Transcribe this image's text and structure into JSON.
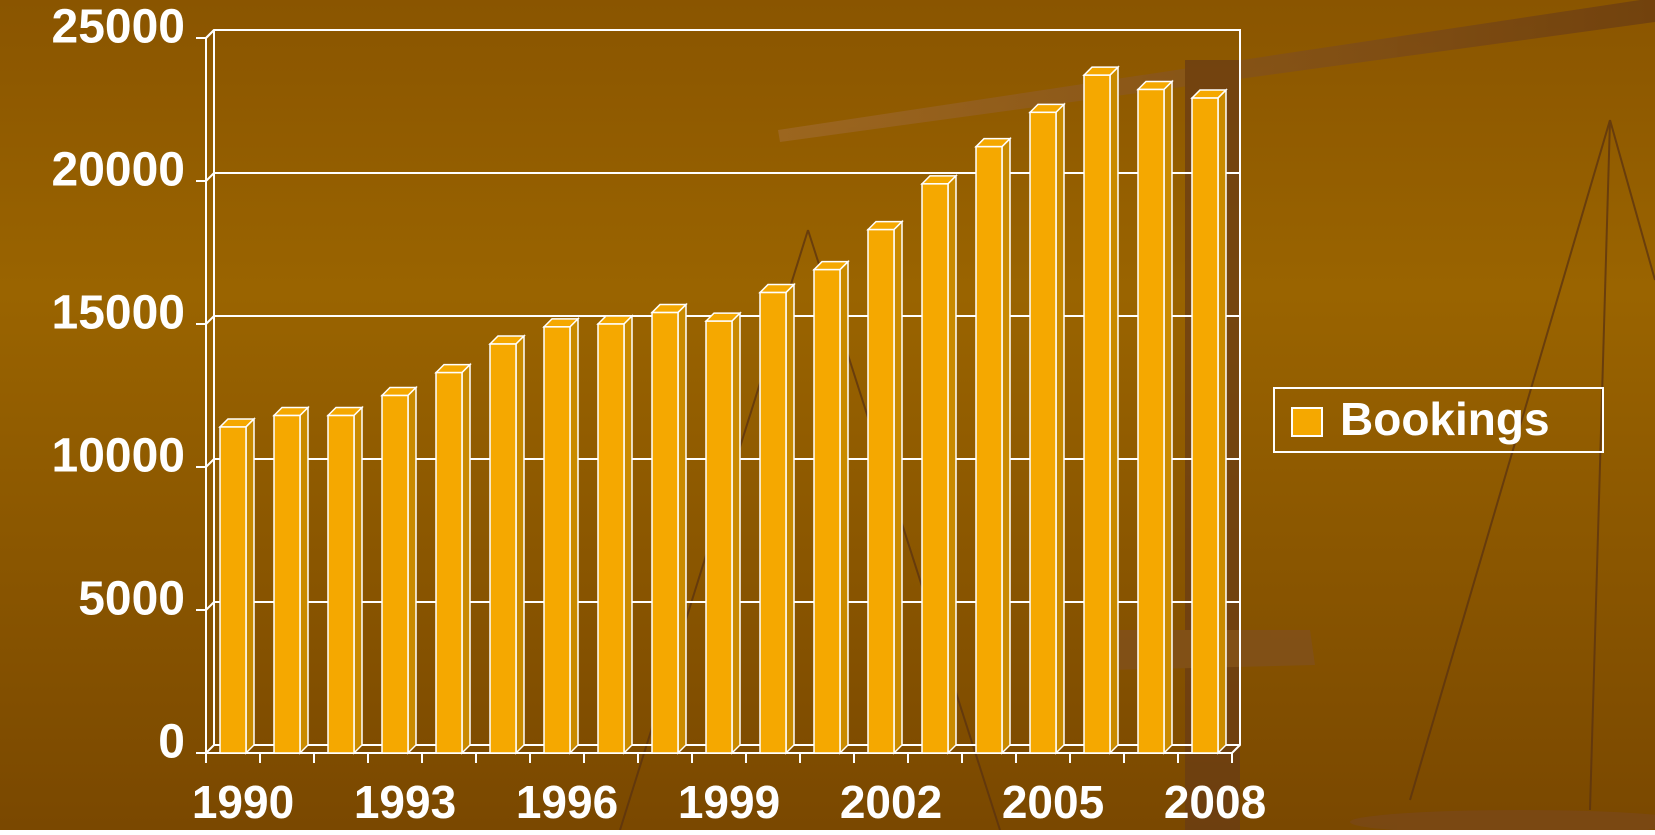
{
  "chart_data": {
    "type": "bar",
    "categories": [
      "1990",
      null,
      null,
      "1993",
      null,
      null,
      "1996",
      null,
      null,
      "1999",
      null,
      null,
      "2002",
      null,
      null,
      "2005",
      null,
      null,
      "2008"
    ],
    "series": [
      {
        "name": "Bookings",
        "color": "#f5a800",
        "values": [
          11400,
          11800,
          11800,
          12500,
          13300,
          14300,
          14900,
          15000,
          15400,
          15100,
          16100,
          16900,
          18300,
          19900,
          21200,
          22400,
          23700,
          23200,
          22900
        ]
      }
    ],
    "ylim": [
      0,
      25000
    ],
    "yticks": [
      0,
      5000,
      10000,
      15000,
      20000,
      25000
    ],
    "grid": true,
    "legend": "right"
  }
}
